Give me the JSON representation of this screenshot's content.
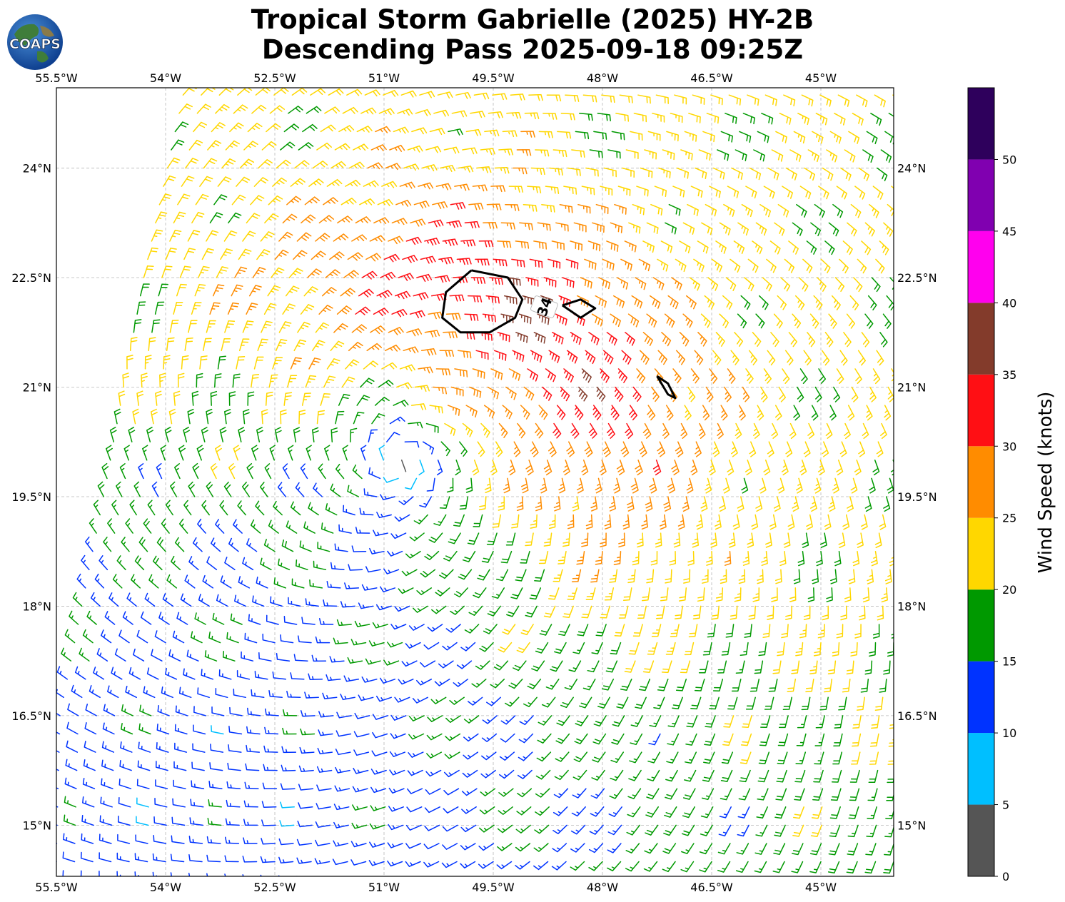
{
  "title": {
    "line1": "Tropical Storm Gabrielle (2025) HY-2B",
    "line2": "Descending Pass 2025-09-18 09:25Z"
  },
  "logo": {
    "text": "COAPS",
    "icon": "globe-logo-icon"
  },
  "chart_data": {
    "type": "wind-barb-map",
    "projection": "plate-carree",
    "xlim": [
      -55.5,
      -44.0
    ],
    "ylim": [
      14.3,
      25.1
    ],
    "x_ticks": [
      {
        "value": -55.5,
        "label": "55.5°W"
      },
      {
        "value": -54.0,
        "label": "54°W"
      },
      {
        "value": -52.5,
        "label": "52.5°W"
      },
      {
        "value": -51.0,
        "label": "51°W"
      },
      {
        "value": -49.5,
        "label": "49.5°W"
      },
      {
        "value": -48.0,
        "label": "48°W"
      },
      {
        "value": -46.5,
        "label": "46.5°W"
      },
      {
        "value": -45.0,
        "label": "45°W"
      }
    ],
    "y_ticks": [
      {
        "value": 15.0,
        "label": "15°N"
      },
      {
        "value": 16.5,
        "label": "16.5°N"
      },
      {
        "value": 18.0,
        "label": "18°N"
      },
      {
        "value": 19.5,
        "label": "19.5°N"
      },
      {
        "value": 21.0,
        "label": "21°N"
      },
      {
        "value": 22.5,
        "label": "22.5°N"
      },
      {
        "value": 24.0,
        "label": "24°N"
      }
    ],
    "grid": true,
    "grid_style": "dashed",
    "storm_center": {
      "lon": -50.8,
      "lat": 20.0
    },
    "max_wind_kt": 38,
    "swath_left_edge": [
      {
        "lat": 25.05,
        "lon": -53.75
      },
      {
        "lat": 22.5,
        "lon": -54.3
      },
      {
        "lat": 19.5,
        "lon": -54.85
      },
      {
        "lat": 16.5,
        "lon": -55.45
      },
      {
        "lat": 14.6,
        "lon": -55.5
      }
    ],
    "contour_34kt": {
      "level": 34,
      "label": "34",
      "label_at": {
        "lon": -48.8,
        "lat": 22.1
      },
      "rings": [
        [
          [
            -49.8,
            22.6
          ],
          [
            -49.3,
            22.5
          ],
          [
            -49.1,
            22.2
          ],
          [
            -49.2,
            21.95
          ],
          [
            -49.55,
            21.75
          ],
          [
            -49.95,
            21.75
          ],
          [
            -50.2,
            21.95
          ],
          [
            -50.15,
            22.3
          ],
          [
            -49.8,
            22.6
          ]
        ],
        [
          [
            -48.55,
            22.12
          ],
          [
            -48.3,
            22.2
          ],
          [
            -48.1,
            22.08
          ],
          [
            -48.3,
            21.95
          ],
          [
            -48.55,
            22.12
          ]
        ],
        [
          [
            -47.25,
            21.15
          ],
          [
            -47.1,
            21.05
          ],
          [
            -47.0,
            20.85
          ],
          [
            -47.1,
            20.9
          ],
          [
            -47.25,
            21.15
          ]
        ]
      ]
    },
    "wind_field": {
      "grid_spacing_deg": 0.25,
      "units": "knots",
      "circulation": "cyclonic",
      "gale_maximum_region": "north-northeast of center"
    },
    "colorbar": {
      "label": "Wind Speed (knots)",
      "min": 0,
      "max": 55,
      "ticks": [
        0,
        5,
        10,
        15,
        20,
        25,
        30,
        35,
        40,
        45,
        50
      ],
      "bins": [
        {
          "from": 0,
          "to": 5,
          "color": "#555555"
        },
        {
          "from": 5,
          "to": 10,
          "color": "#00bfff"
        },
        {
          "from": 10,
          "to": 15,
          "color": "#0033ff"
        },
        {
          "from": 15,
          "to": 20,
          "color": "#009900"
        },
        {
          "from": 20,
          "to": 25,
          "color": "#ffd700"
        },
        {
          "from": 25,
          "to": 30,
          "color": "#ff8c00"
        },
        {
          "from": 30,
          "to": 35,
          "color": "#ff0f14"
        },
        {
          "from": 35,
          "to": 40,
          "color": "#833b2b"
        },
        {
          "from": 40,
          "to": 45,
          "color": "#ff00ee"
        },
        {
          "from": 45,
          "to": 50,
          "color": "#8000b0"
        },
        {
          "from": 50,
          "to": 55,
          "color": "#2e005c"
        }
      ]
    }
  }
}
